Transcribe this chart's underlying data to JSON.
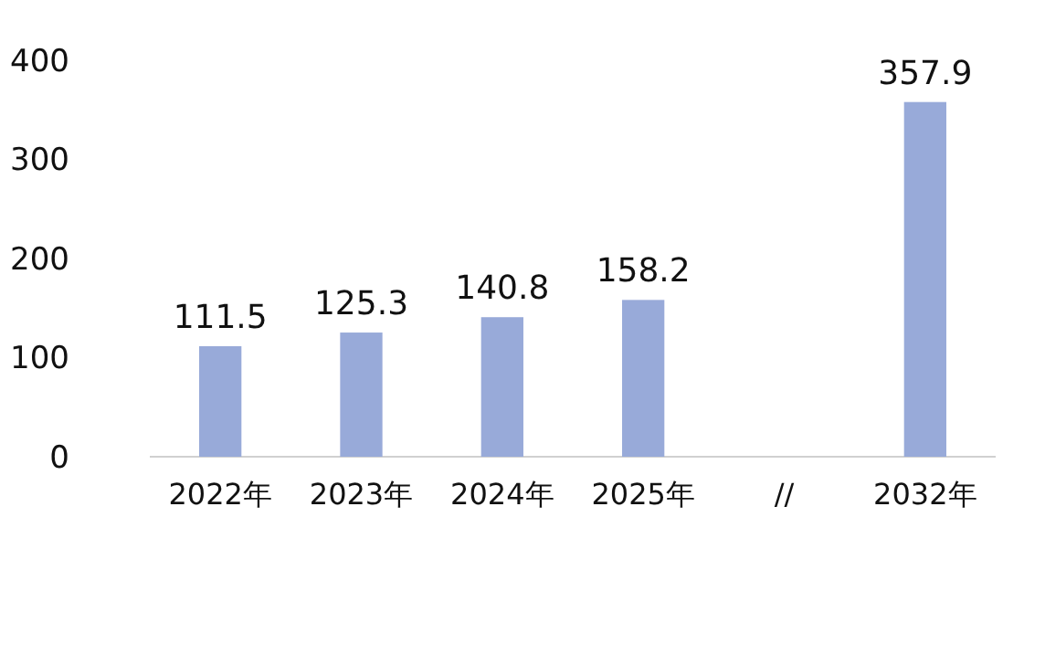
{
  "chart_data": {
    "type": "bar",
    "categories": [
      "2022年",
      "2023年",
      "2024年",
      "2025年",
      "//",
      "2032年"
    ],
    "values": [
      111.5,
      125.3,
      140.8,
      158.2,
      null,
      357.9
    ],
    "color": "#98aad9",
    "ylim": [
      0,
      400
    ],
    "yticks": [
      0,
      100,
      200,
      300,
      400
    ],
    "grid": false,
    "data_labels": true
  }
}
